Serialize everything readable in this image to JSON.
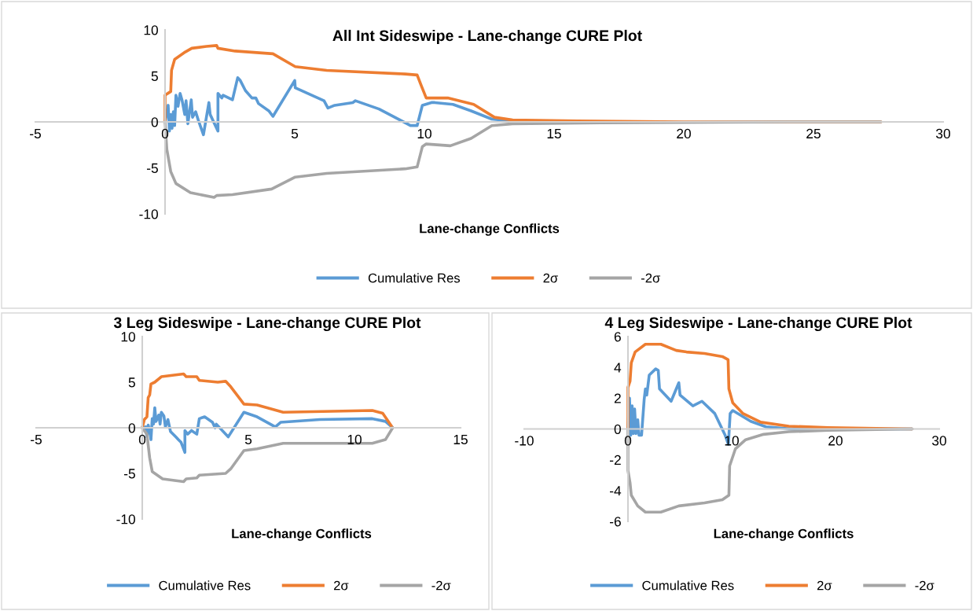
{
  "chart_data": [
    {
      "type": "line",
      "title": "All Int Sideswipe - Lane-change CURE Plot",
      "xlabel": "Lane-change Conflicts",
      "xlim": [
        -5,
        30
      ],
      "xticks": [
        -5,
        0,
        5,
        10,
        15,
        20,
        25,
        30
      ],
      "ylim": [
        -10,
        10
      ],
      "yticks": [
        -10,
        -5,
        0,
        5,
        10
      ],
      "grid": false,
      "legend": "bottom",
      "marker": "none",
      "line_style": "solid",
      "series": [
        {
          "name": "Cumulative Res",
          "color": "#5b9bd5",
          "x": [
            0,
            0.12,
            0.17,
            0.22,
            0.27,
            0.32,
            0.37,
            0.42,
            0.5,
            0.58,
            0.66,
            0.76,
            0.81,
            0.88,
            1.01,
            1.06,
            1.18,
            1.28,
            1.48,
            1.69,
            1.74,
            2.04,
            2.04,
            2.19,
            2.24,
            2.6,
            2.8,
            2.9,
            3.1,
            3.35,
            3.5,
            3.6,
            4.0,
            4.16,
            5.0,
            5.02,
            6.13,
            6.28,
            6.54,
            7.24,
            7.34,
            8.25,
            9.06,
            9.46,
            9.72,
            9.92,
            10.27,
            10.4,
            11.1,
            11.8,
            12.6,
            13.4
          ],
          "values": [
            0,
            1.8,
            -1,
            0.8,
            -0.7,
            1.1,
            -0.4,
            2.9,
            1.7,
            3.1,
            2.3,
            0.8,
            2.3,
            -0.2,
            2.4,
            0.5,
            1.1,
            0.2,
            -1.4,
            2.1,
            0.8,
            -1,
            3.1,
            2.6,
            2.9,
            2.4,
            4.8,
            4.5,
            3.4,
            2.6,
            2.6,
            2.0,
            1.2,
            0.6,
            4.5,
            3.7,
            2.3,
            1.5,
            1.8,
            2.1,
            2.3,
            1.4,
            0.2,
            -0.4,
            -0.4,
            1.8,
            2.1,
            2.1,
            1.9,
            1.2,
            0.3,
            0.1
          ]
        },
        {
          "name": "2σ",
          "color": "#ed7d31",
          "x": [
            0,
            0,
            0.22,
            0.25,
            0.37,
            0.78,
            1.03,
            1.59,
            1.99,
            2.04,
            2.7,
            4.16,
            5.02,
            6.23,
            9.26,
            9.72,
            9.87,
            10.07,
            10.9,
            11.9,
            12.7,
            13.4,
            15.9,
            20,
            27.6
          ],
          "values": [
            0,
            2.9,
            3.3,
            5.6,
            6.8,
            7.6,
            8.0,
            8.2,
            8.3,
            8.0,
            7.7,
            7.4,
            6.0,
            5.6,
            5.2,
            5.1,
            4.0,
            2.6,
            2.6,
            1.9,
            0.5,
            0.2,
            0.1,
            0,
            0
          ]
        },
        {
          "name": "-2σ",
          "color": "#a5a5a5",
          "x": [
            0,
            0.07,
            0.22,
            0.42,
            0.98,
            1.89,
            1.99,
            2.6,
            4.11,
            5.02,
            6.23,
            9.26,
            9.72,
            9.92,
            10.07,
            11.0,
            11.8,
            12.6,
            13.4,
            16.9,
            24,
            27.6
          ],
          "values": [
            0,
            -3.0,
            -5.4,
            -6.7,
            -7.7,
            -8.2,
            -8.0,
            -7.9,
            -7.3,
            -6.0,
            -5.6,
            -5.1,
            -4.9,
            -2.7,
            -2.4,
            -2.6,
            -1.8,
            -0.4,
            -0.2,
            -0.1,
            0,
            0
          ]
        }
      ]
    },
    {
      "type": "line",
      "title": "3 Leg Sideswipe - Lane-change CURE Plot",
      "xlabel": "Lane-change Conflicts",
      "xlim": [
        -5,
        15
      ],
      "xticks": [
        -5,
        0,
        5,
        10,
        15
      ],
      "ylim": [
        -10,
        10
      ],
      "yticks": [
        -10,
        -5,
        0,
        5,
        10
      ],
      "grid": false,
      "legend": "bottom",
      "marker": "none",
      "line_style": "solid",
      "series": [
        {
          "name": "Cumulative Res",
          "color": "#5b9bd5",
          "x": [
            0,
            0.16,
            0.22,
            0.28,
            0.35,
            0.41,
            0.47,
            0.53,
            0.59,
            0.65,
            0.78,
            0.84,
            0.9,
            1.02,
            1.09,
            1.21,
            1.33,
            1.58,
            1.7,
            1.83,
            2.01,
            2.01,
            2.14,
            2.32,
            2.57,
            2.69,
            2.94,
            3.31,
            3.43,
            3.49,
            4.05,
            4.79,
            5.41,
            6.27,
            6.52,
            8.37,
            10.84,
            11.46,
            11.8
          ],
          "values": [
            0,
            0.1,
            -1.0,
            0.3,
            -0.4,
            -1.3,
            1.0,
            0.4,
            2.2,
            0.7,
            1.4,
            0.4,
            1.7,
            1.3,
            0.1,
            0.9,
            -0.4,
            -1.0,
            -1.3,
            -1.6,
            -2.7,
            -0.3,
            -0.7,
            -0.3,
            -0.7,
            1.0,
            1.2,
            0.6,
            0,
            0.4,
            -1.0,
            1.7,
            1.2,
            0.1,
            0.6,
            0.9,
            1.0,
            0.7,
            0
          ]
        },
        {
          "name": "2σ",
          "color": "#ed7d31",
          "x": [
            0,
            0.1,
            0.22,
            0.28,
            0.35,
            0.41,
            0.59,
            0.9,
            1.95,
            2.07,
            2.57,
            2.69,
            3.56,
            3.93,
            4.17,
            4.79,
            5.41,
            6.64,
            10.84,
            11.33,
            11.8
          ],
          "values": [
            0,
            0.9,
            1.2,
            3.3,
            3.6,
            4.8,
            5.0,
            5.6,
            5.9,
            5.6,
            5.6,
            5.2,
            5.0,
            5.1,
            4.5,
            2.6,
            2.5,
            1.7,
            1.9,
            1.6,
            0
          ]
        },
        {
          "name": "-2σ",
          "color": "#a5a5a5",
          "x": [
            0,
            0.22,
            0.35,
            0.47,
            0.96,
            1.95,
            2.07,
            2.57,
            2.69,
            3.93,
            4.17,
            4.79,
            5.41,
            6.64,
            10.84,
            11.46,
            11.8
          ],
          "values": [
            0,
            -0.7,
            -3.3,
            -4.8,
            -5.6,
            -5.9,
            -5.6,
            -5.5,
            -5.2,
            -5.0,
            -4.5,
            -2.5,
            -2.3,
            -1.7,
            -1.7,
            -1.3,
            0
          ]
        }
      ]
    },
    {
      "type": "line",
      "title": "4 Leg Sideswipe - Lane-change CURE Plot",
      "xlabel": "Lane-change Conflicts",
      "xlim": [
        -10,
        30
      ],
      "xticks": [
        -10,
        0,
        10,
        20,
        30
      ],
      "ylim": [
        -6,
        6
      ],
      "yticks": [
        -6,
        -4,
        -2,
        0,
        2,
        4,
        6
      ],
      "grid": false,
      "legend": "bottom",
      "marker": "none",
      "line_style": "solid",
      "series": [
        {
          "name": "Cumulative Res",
          "color": "#5b9bd5",
          "x": [
            0,
            0.15,
            0.27,
            0.4,
            0.52,
            0.64,
            0.77,
            0.94,
            1.06,
            1.31,
            1.56,
            1.68,
            1.81,
            2.05,
            2.67,
            2.92,
            3.04,
            4.16,
            4.9,
            5.02,
            6.26,
            7.13,
            8.37,
            9.36,
            9.68,
            9.85,
            10.1,
            11.83,
            13.3,
            15.8,
            27.4
          ],
          "values": [
            0,
            2.0,
            -0.4,
            1.5,
            -0.3,
            1.3,
            -0.3,
            0.6,
            -0.4,
            -0.4,
            1.9,
            2.6,
            2.2,
            3.5,
            3.9,
            3.8,
            2.6,
            1.8,
            3.0,
            2.2,
            1.5,
            1.8,
            1.0,
            -0.4,
            -1.0,
            1.0,
            1.2,
            0.5,
            0.14,
            0,
            0
          ]
        },
        {
          "name": "2σ",
          "color": "#ed7d31",
          "x": [
            0,
            0,
            0.2,
            0.32,
            0.69,
            1.68,
            3.17,
            4.65,
            5.64,
            7.38,
            9.1,
            9.65,
            9.73,
            10.1,
            11.09,
            12.8,
            15.5,
            19.3,
            27.4
          ],
          "values": [
            0,
            2.7,
            3.1,
            4.3,
            5.0,
            5.5,
            5.5,
            5.1,
            5.0,
            4.9,
            4.7,
            4.5,
            2.6,
            1.7,
            1.0,
            0.44,
            0.18,
            0.09,
            0
          ]
        },
        {
          "name": "-2σ",
          "color": "#a5a5a5",
          "x": [
            0,
            0,
            0.2,
            0.32,
            0.94,
            1.68,
            3.17,
            4.9,
            7.38,
            9.1,
            9.73,
            9.8,
            10.35,
            11.34,
            13.07,
            15.5,
            19.3,
            27.4
          ],
          "values": [
            0,
            -2.7,
            -3.5,
            -4.3,
            -5.0,
            -5.4,
            -5.4,
            -5.0,
            -4.8,
            -4.6,
            -4.3,
            -2.4,
            -1.3,
            -0.7,
            -0.35,
            -0.18,
            -0.09,
            0
          ]
        }
      ]
    }
  ]
}
